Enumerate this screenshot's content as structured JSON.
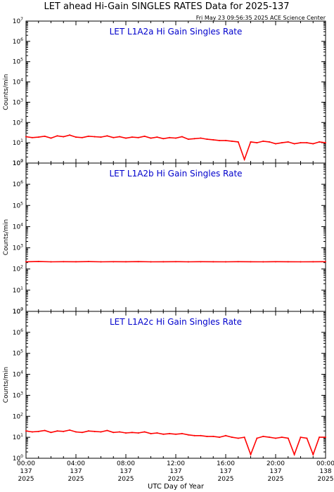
{
  "title": "LET ahead Hi-Gain SINGLES RATES Data for 2025-137",
  "timestamp": "Fri May 23 09:56:35 2025 ACE Science Center",
  "xlabel": "UTC Day of Year",
  "colors": {
    "trace": "#ff0000",
    "panel_title": "#0000cc",
    "axes": "#000000"
  },
  "chart_data": [
    {
      "type": "line",
      "title": "LET L1A2a Hi Gain Singles Rate",
      "ylabel": "Counts/min",
      "yscale": "log",
      "ylim": [
        1,
        10000000
      ],
      "yticks": [
        1,
        10,
        100,
        1000,
        10000,
        100000,
        1000000,
        10000000
      ],
      "x_range_hours": [
        0,
        24
      ],
      "series": [
        {
          "x_hours": [
            0,
            0.5,
            1,
            1.5,
            2,
            2.5,
            3,
            3.5,
            4,
            4.5,
            5,
            5.5,
            6,
            6.5,
            7,
            7.5,
            8,
            8.5,
            9,
            9.5,
            10,
            10.5,
            11,
            11.5,
            12,
            12.5,
            13,
            13.5,
            14,
            14.5,
            15,
            15.5,
            16,
            16.5,
            17,
            17.5,
            18,
            18.5,
            19,
            19.5,
            20,
            20.5,
            21,
            21.5,
            22,
            22.5,
            23,
            23.5,
            24
          ],
          "values": [
            20,
            18,
            19,
            21,
            17,
            22,
            20,
            24,
            19,
            18,
            21,
            20,
            19,
            22,
            18,
            20,
            17,
            19,
            18,
            21,
            17,
            19,
            16,
            18,
            17,
            20,
            15,
            16,
            17,
            15,
            14,
            13,
            13,
            12,
            11,
            1.5,
            11,
            10,
            12,
            11,
            9,
            10,
            11,
            9,
            10,
            10,
            9,
            11,
            10
          ]
        }
      ]
    },
    {
      "type": "line",
      "title": "LET L1A2b Hi Gain Singles Rate",
      "ylabel": "Counts/min",
      "yscale": "log",
      "ylim": [
        1,
        10000000
      ],
      "yticks": [
        1,
        10,
        100,
        1000,
        10000,
        100000,
        1000000,
        10000000
      ],
      "x_range_hours": [
        0,
        24
      ],
      "series": [
        {
          "x_hours": [
            0,
            1,
            2,
            3,
            4,
            5,
            6,
            7,
            8,
            9,
            10,
            11,
            12,
            13,
            14,
            15,
            16,
            17,
            18,
            19,
            20,
            21,
            22,
            23,
            24
          ],
          "values": [
            220,
            225,
            218,
            222,
            220,
            224,
            219,
            221,
            220,
            223,
            218,
            220,
            222,
            219,
            221,
            220,
            218,
            222,
            220,
            219,
            221,
            220,
            218,
            220,
            222
          ]
        }
      ]
    },
    {
      "type": "line",
      "title": "LET L1A2c Hi Gain Singles Rate",
      "ylabel": "Counts/min",
      "yscale": "log",
      "ylim": [
        1,
        10000000
      ],
      "yticks": [
        1,
        10,
        100,
        1000,
        10000,
        100000,
        1000000,
        10000000
      ],
      "x_range_hours": [
        0,
        24
      ],
      "x_tick_labels": [
        {
          "hours": 0,
          "lines": [
            "00:00",
            "137",
            "2025"
          ]
        },
        {
          "hours": 4,
          "lines": [
            "04:00",
            "137",
            "2025"
          ]
        },
        {
          "hours": 8,
          "lines": [
            "08:00",
            "137",
            "2025"
          ]
        },
        {
          "hours": 12,
          "lines": [
            "12:00",
            "137",
            "2025"
          ]
        },
        {
          "hours": 16,
          "lines": [
            "16:00",
            "137",
            "2025"
          ]
        },
        {
          "hours": 20,
          "lines": [
            "20:00",
            "137",
            "2025"
          ]
        },
        {
          "hours": 24,
          "lines": [
            "00:00",
            "138",
            "2025"
          ]
        }
      ],
      "series": [
        {
          "x_hours": [
            0,
            0.5,
            1,
            1.5,
            2,
            2.5,
            3,
            3.5,
            4,
            4.5,
            5,
            5.5,
            6,
            6.5,
            7,
            7.5,
            8,
            8.5,
            9,
            9.5,
            10,
            10.5,
            11,
            11.5,
            12,
            12.5,
            13,
            13.5,
            14,
            14.5,
            15,
            15.5,
            16,
            16.5,
            17,
            17.5,
            18,
            18.5,
            19,
            19.5,
            20,
            20.5,
            21,
            21.5,
            22,
            22.5,
            23,
            23.5,
            24
          ],
          "values": [
            20,
            18,
            19,
            21,
            17,
            20,
            19,
            22,
            18,
            17,
            20,
            19,
            18,
            21,
            17,
            18,
            16,
            17,
            16,
            18,
            15,
            16,
            14,
            15,
            14,
            15,
            13,
            12,
            12,
            11,
            11,
            10,
            12,
            10,
            9,
            10,
            1.5,
            9,
            11,
            10,
            9,
            10,
            9,
            1.5,
            10,
            9,
            1.5,
            10,
            10
          ]
        }
      ]
    }
  ]
}
